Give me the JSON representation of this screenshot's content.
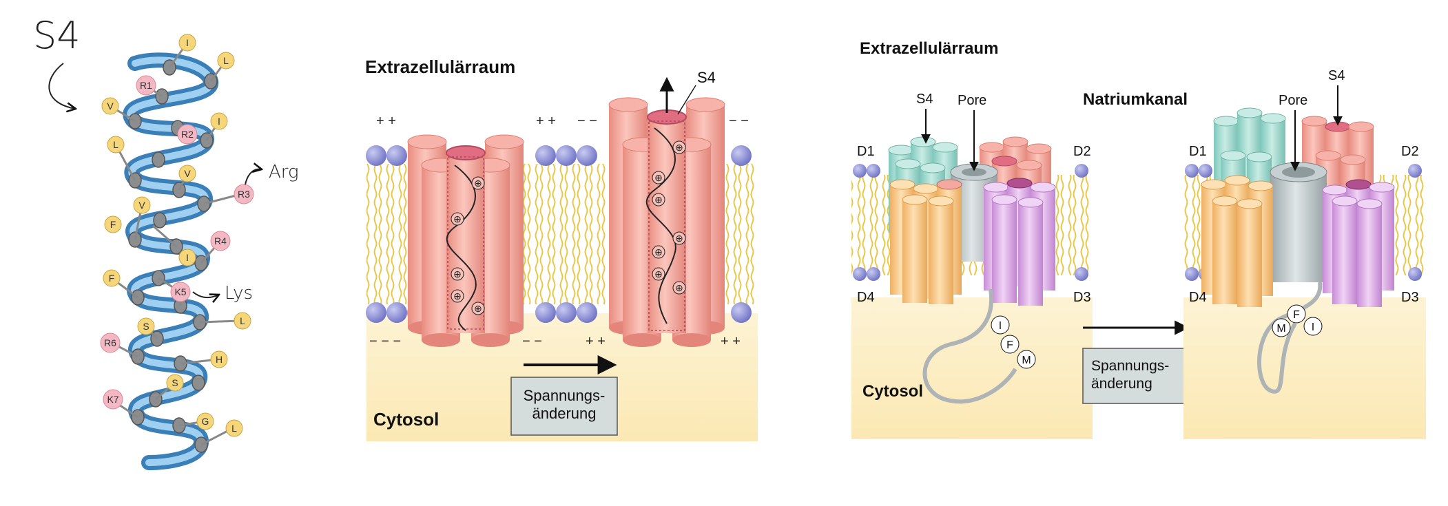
{
  "helix": {
    "title": "S4",
    "residues": {
      "r1": "I",
      "r2": "L",
      "r3": "R1",
      "r4": "V",
      "r5": "I",
      "r6": "R2",
      "r7": "L",
      "r8": "V",
      "r9": "R3",
      "r10": "V",
      "r11": "F",
      "r12": "R4",
      "r13": "I",
      "r14": "F",
      "r15": "K5",
      "r16": "S",
      "r17": "L",
      "r18": "R6",
      "r19": "H",
      "r20": "S",
      "r21": "K7",
      "r22": "G",
      "r23": "L"
    },
    "notes": {
      "arg": "Arg",
      "lys": "Lys"
    }
  },
  "panel1": {
    "extracellular": "Extrazellulärraum",
    "cytosol": "Cytosol",
    "s4": "S4",
    "button_line1": "Spannungs-",
    "button_line2": "änderung",
    "plus": "+ +",
    "minus": "− −",
    "minus3": "− − −",
    "plus_pos": "⊕"
  },
  "panel2": {
    "extracellular": "Extrazellulärraum",
    "channel": "Natriumkanal",
    "cytosol": "Cytosol",
    "s4": "S4",
    "pore": "Pore",
    "d1": "D1",
    "d2": "D2",
    "d3": "D3",
    "d4": "D4",
    "ifm_i": "I",
    "ifm_f": "F",
    "ifm_m": "M",
    "button_line1": "Spannungs-",
    "button_line2": "änderung"
  },
  "colors": {
    "helix_tube": "#5fa7d8",
    "residue_yellow": "#f6d67a",
    "residue_pink": "#f4b8c4",
    "salmon": "#f2a49a",
    "teal": "#9fd7cc",
    "orange": "#f7c98b",
    "violet": "#d9a8e3",
    "grey": "#b9c3c5",
    "cytosol": "#fcefc4",
    "lipid_head": "#8f92d6"
  }
}
